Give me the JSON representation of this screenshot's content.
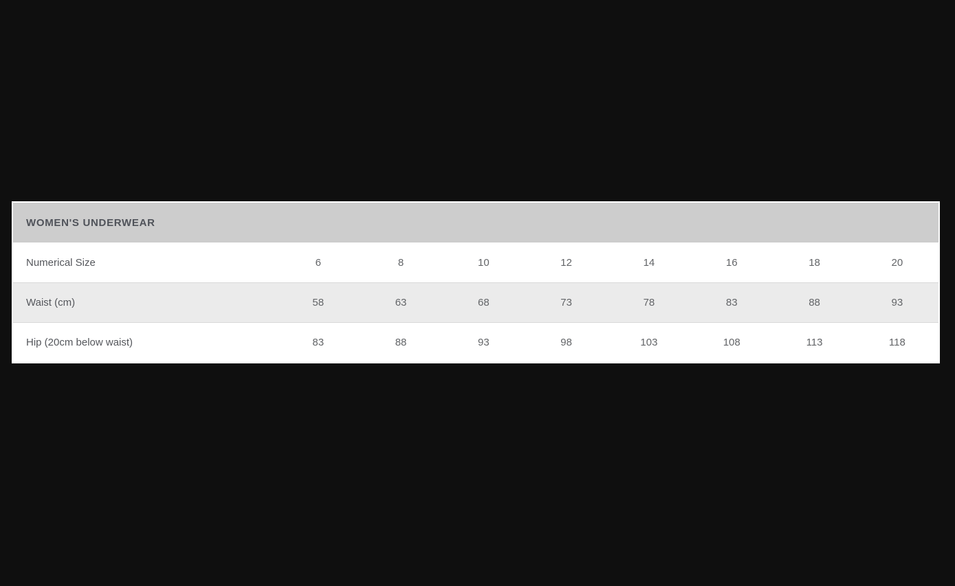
{
  "colors": {
    "page_bg": "#0f0f0f",
    "card_bg": "#ffffff",
    "header_bg": "#cdcdcd",
    "header_text": "#50535a",
    "row_alt_bg": "#ebebeb",
    "label_text": "#55575c",
    "value_text": "#636568",
    "row_border": "#d9d9d9"
  },
  "size_chart": {
    "title": "WOMEN'S UNDERWEAR",
    "rows": [
      {
        "label": "Numerical Size",
        "values": [
          "6",
          "8",
          "10",
          "12",
          "14",
          "16",
          "18",
          "20"
        ]
      },
      {
        "label": "Waist (cm)",
        "values": [
          "58",
          "63",
          "68",
          "73",
          "78",
          "83",
          "88",
          "93"
        ]
      },
      {
        "label": "Hip (20cm below waist)",
        "values": [
          "83",
          "88",
          "93",
          "98",
          "103",
          "108",
          "113",
          "118"
        ]
      }
    ]
  }
}
